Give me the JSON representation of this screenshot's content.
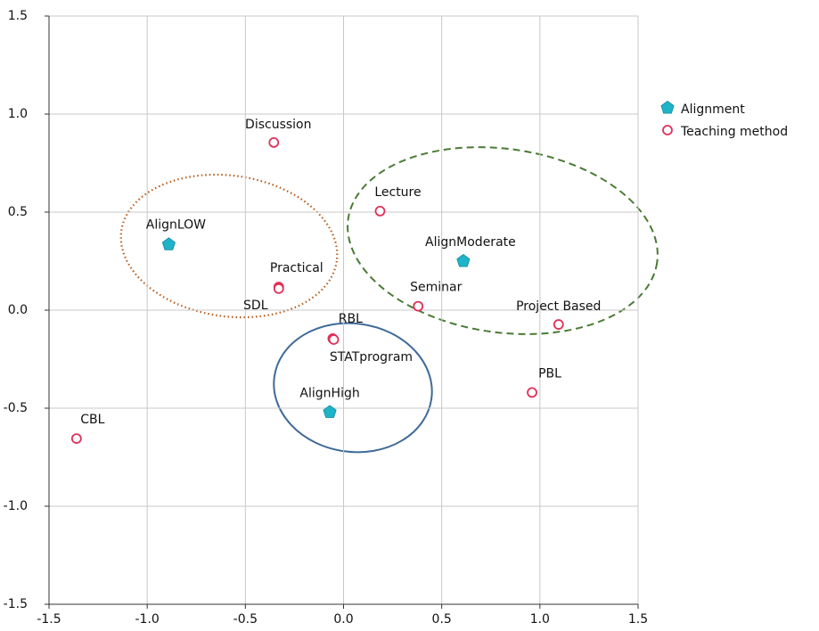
{
  "chart_data": {
    "type": "scatter",
    "xlim": [
      -1.5,
      1.5
    ],
    "ylim": [
      -1.5,
      1.5
    ],
    "xticks": [
      -1.5,
      {
        "value": -1,
        "label": "-1.0"
      },
      -0.5,
      {
        "value": 0,
        "label": "0.0"
      },
      0.5,
      {
        "value": 1,
        "label": "1.0"
      },
      1.5
    ],
    "yticks": [
      -1.5,
      {
        "value": -1,
        "label": "-1.0"
      },
      -0.5,
      {
        "value": 0,
        "label": "0.0"
      },
      0.5,
      {
        "value": 1,
        "label": "1.0"
      },
      1.5
    ],
    "grid": true,
    "legend": "right",
    "series": [
      {
        "name": "Alignment",
        "color": "#1fb3c8",
        "marker": "pentagon",
        "labels": [
          "AlignLOW",
          "AlignModerate",
          "AlignHigh"
        ],
        "x": [
          -0.89,
          0.61,
          -0.07
        ],
        "values": [
          0.335,
          0.25,
          -0.52
        ]
      },
      {
        "name": "Teaching method",
        "color": "#e0305a",
        "marker": "open-circle",
        "labels": [
          "Discussion",
          "Lecture",
          "Practical",
          "SDL",
          "Seminar",
          "Project Based",
          "RBL",
          "STATprogram",
          "PBL",
          "CBL"
        ],
        "x": [
          -0.355,
          0.186,
          -0.33,
          -0.33,
          0.38,
          1.095,
          -0.055,
          -0.05,
          0.96,
          -1.36
        ],
        "values": [
          0.855,
          0.505,
          0.118,
          0.11,
          0.02,
          -0.073,
          -0.145,
          -0.15,
          -0.42,
          -0.655
        ]
      }
    ]
  }
}
